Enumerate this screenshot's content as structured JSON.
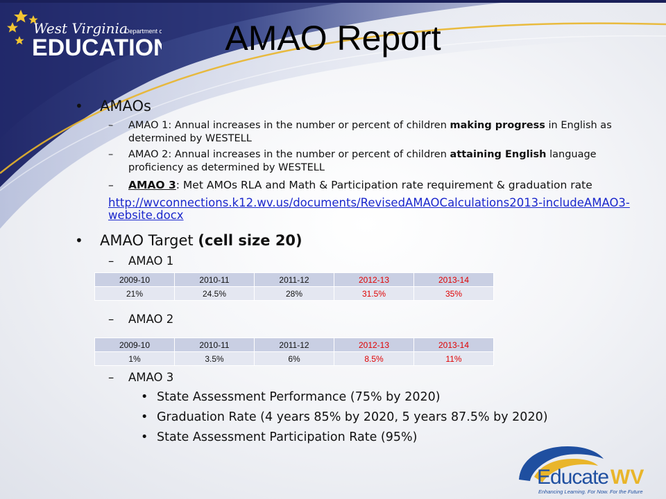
{
  "logo_wv": {
    "line1": "West Virginia",
    "line2": "Department of",
    "line3": "EDUCATION"
  },
  "title": "AMAO Report",
  "amaos": {
    "heading": "AMAOs",
    "items": [
      {
        "pre": "AMAO 1: Annual increases in the number or percent of children ",
        "bold": "making progress",
        "post": " in English as determined by WESTELL"
      },
      {
        "pre": "AMAO 2: Annual increases in the number or percent of children ",
        "bold": "attaining English",
        "post": " language proficiency as determined by WESTELL"
      },
      {
        "label": "AMAO 3",
        "text": ": Met AMOs RLA and Math & Participation rate requirement  & graduation rate"
      }
    ],
    "link": "http://wvconnections.k12.wv.us/documents/RevisedAMAOCalculations2013-includeAMAO3-website.docx"
  },
  "target": {
    "heading": "AMAO Target ",
    "heading_bold": "(cell size 20)",
    "amao1": {
      "label": "AMAO 1",
      "years": [
        "2009-10",
        "2010-11",
        "2011-12",
        "2012-13",
        "2013-14"
      ],
      "values": [
        "21%",
        "24.5%",
        "28%",
        "31.5%",
        "35%"
      ]
    },
    "amao2": {
      "label": "AMAO 2",
      "years": [
        "2009-10",
        "2010-11",
        "2011-12",
        "2012-13",
        "2013-14"
      ],
      "values": [
        "1%",
        "3.5%",
        "6%",
        "8.5%",
        "11%"
      ]
    },
    "amao3": {
      "label": "AMAO 3",
      "items": [
        "State Assessment Performance (75% by 2020)",
        "Graduation Rate (4 years 85% by 2020, 5 years 87.5% by 2020)",
        "State Assessment Participation Rate (95%)"
      ]
    }
  },
  "logo_educate": {
    "word1": "Educate",
    "word2": "WV",
    "tagline": "Enhancing Learning. For Now. For the Future"
  },
  "colors": {
    "band_navy": "#2a3470",
    "band_gold": "#e9b52a",
    "highlight_red": "#e00000",
    "link_blue": "#1a27cc"
  }
}
